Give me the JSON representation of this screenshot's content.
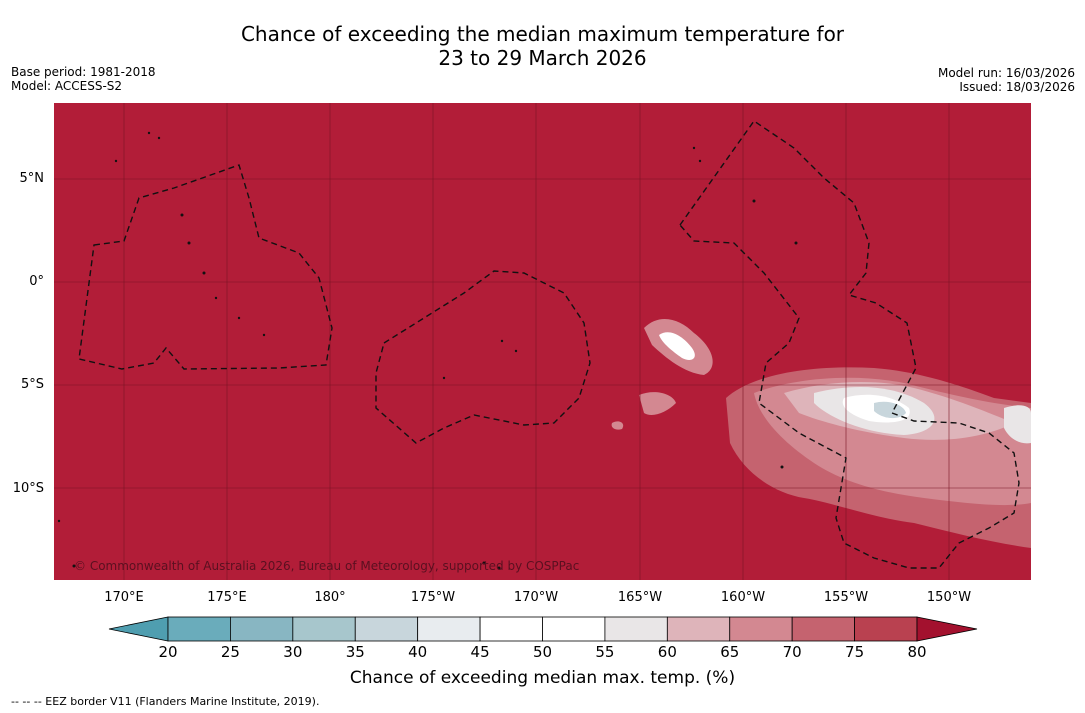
{
  "title": {
    "line1": "Chance of exceeding the median maximum temperature for",
    "line2": "23 to 29 March 2026"
  },
  "meta_left": {
    "base_period": "Base period: 1981-2018",
    "model": "Model: ACCESS-S2"
  },
  "meta_right": {
    "model_run": "Model run: 16/03/2026",
    "issued": "Issued: 18/03/2026"
  },
  "map": {
    "latitude_labels": [
      "5°N",
      "0°",
      "5°S",
      "10°S"
    ],
    "longitude_labels": [
      "170°E",
      "175°E",
      "180°",
      "175°W",
      "170°W",
      "165°W",
      "160°W",
      "155°W",
      "150°W"
    ],
    "copyright": "© Commonwealth of Australia 2026, Bureau of Meteorology, supported by COSPPac",
    "base_color": "#b21d38"
  },
  "colorbar": {
    "ticks": [
      "20",
      "25",
      "30",
      "35",
      "40",
      "45",
      "50",
      "55",
      "60",
      "65",
      "70",
      "75",
      "80"
    ],
    "colors": [
      "#6aacbb",
      "#88b6c2",
      "#a7c6cc",
      "#c8d6dc",
      "#e8ecef",
      "#ffffff",
      "#ffffff",
      "#e9e6e7",
      "#deb4ba",
      "#d38891",
      "#c5636f",
      "#b94150"
    ],
    "under_color": "#4f9eb0",
    "over_color": "#a3112e",
    "label": "Chance of exceeding median max. temp. (%)"
  },
  "footnote": "--  --  -- EEZ border V11 (Flanders Marine Institute, 2019)."
}
